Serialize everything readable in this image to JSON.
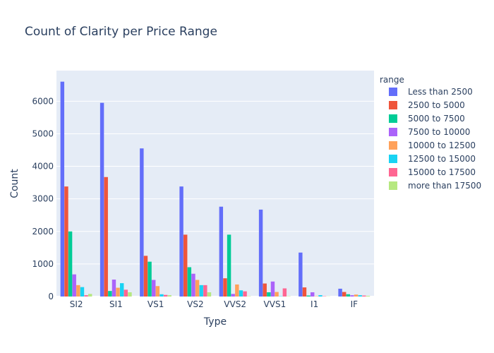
{
  "chart_data": {
    "type": "bar",
    "title": "Count of Clarity per Price Range",
    "xlabel": "Type",
    "ylabel": "Count",
    "ylim": [
      0,
      6940
    ],
    "yticks": [
      0,
      1000,
      2000,
      3000,
      4000,
      5000,
      6000
    ],
    "grid": true,
    "legend_position": "right",
    "legend_title": "range",
    "categories": [
      "SI2",
      "SI1",
      "VS1",
      "VS2",
      "VVS2",
      "VVS1",
      "I1",
      "IF"
    ],
    "series": [
      {
        "name": "Less than 2500",
        "color": "#636efa",
        "values": [
          6600,
          5950,
          4550,
          3380,
          2760,
          2670,
          1350,
          240
        ]
      },
      {
        "name": "2500 to 5000",
        "color": "#EF553B",
        "values": [
          3380,
          3670,
          1250,
          1900,
          560,
          400,
          280,
          140
        ]
      },
      {
        "name": "5000 to 7500",
        "color": "#00cc96",
        "values": [
          2000,
          170,
          1070,
          900,
          1900,
          130,
          30,
          70
        ]
      },
      {
        "name": "7500 to 10000",
        "color": "#ab63fa",
        "values": [
          680,
          520,
          510,
          700,
          80,
          460,
          130,
          40
        ]
      },
      {
        "name": "10000 to 12500",
        "color": "#FFA15A",
        "values": [
          350,
          270,
          320,
          510,
          370,
          140,
          10,
          60
        ]
      },
      {
        "name": "12500 to 15000",
        "color": "#19d3f3",
        "values": [
          290,
          410,
          70,
          350,
          190,
          10,
          40,
          40
        ]
      },
      {
        "name": "15000 to 17500",
        "color": "#FF6692",
        "values": [
          40,
          210,
          50,
          350,
          160,
          250,
          10,
          30
        ]
      },
      {
        "name": "more than 17500",
        "color": "#B6E880",
        "values": [
          80,
          130,
          40,
          130,
          10,
          10,
          5,
          20
        ]
      }
    ]
  }
}
